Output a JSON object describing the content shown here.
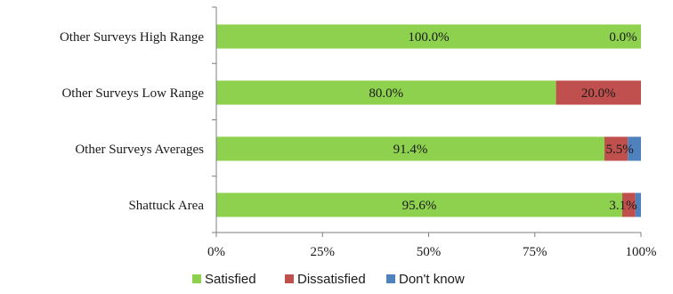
{
  "chart_data": {
    "type": "bar",
    "orientation": "horizontal",
    "stacked": true,
    "categories": [
      "Other Surveys High Range",
      "Other Surveys Low Range",
      "Other Surveys Averages",
      "Shattuck Area"
    ],
    "series": [
      {
        "name": "Satisfied",
        "color": "#8dd14f",
        "values": [
          100.0,
          80.0,
          91.4,
          95.6
        ],
        "labels": [
          "100.0%",
          "80.0%",
          "91.4%",
          "95.6%"
        ]
      },
      {
        "name": "Dissatisfied",
        "color": "#c0504d",
        "values": [
          0.0,
          20.0,
          5.5,
          3.1
        ],
        "labels": [
          "0.0%",
          "20.0%",
          "5.5%",
          "3.1%"
        ]
      },
      {
        "name": "Don't know",
        "color": "#4f81bd",
        "values": [
          0.0,
          0.0,
          3.1,
          1.3
        ],
        "labels": []
      }
    ],
    "xlim": [
      0,
      100
    ],
    "xticks": [
      "0%",
      "25%",
      "50%",
      "75%",
      "100%"
    ],
    "grid": false,
    "legend_position": "bottom",
    "title": "",
    "xlabel": "",
    "ylabel": ""
  }
}
